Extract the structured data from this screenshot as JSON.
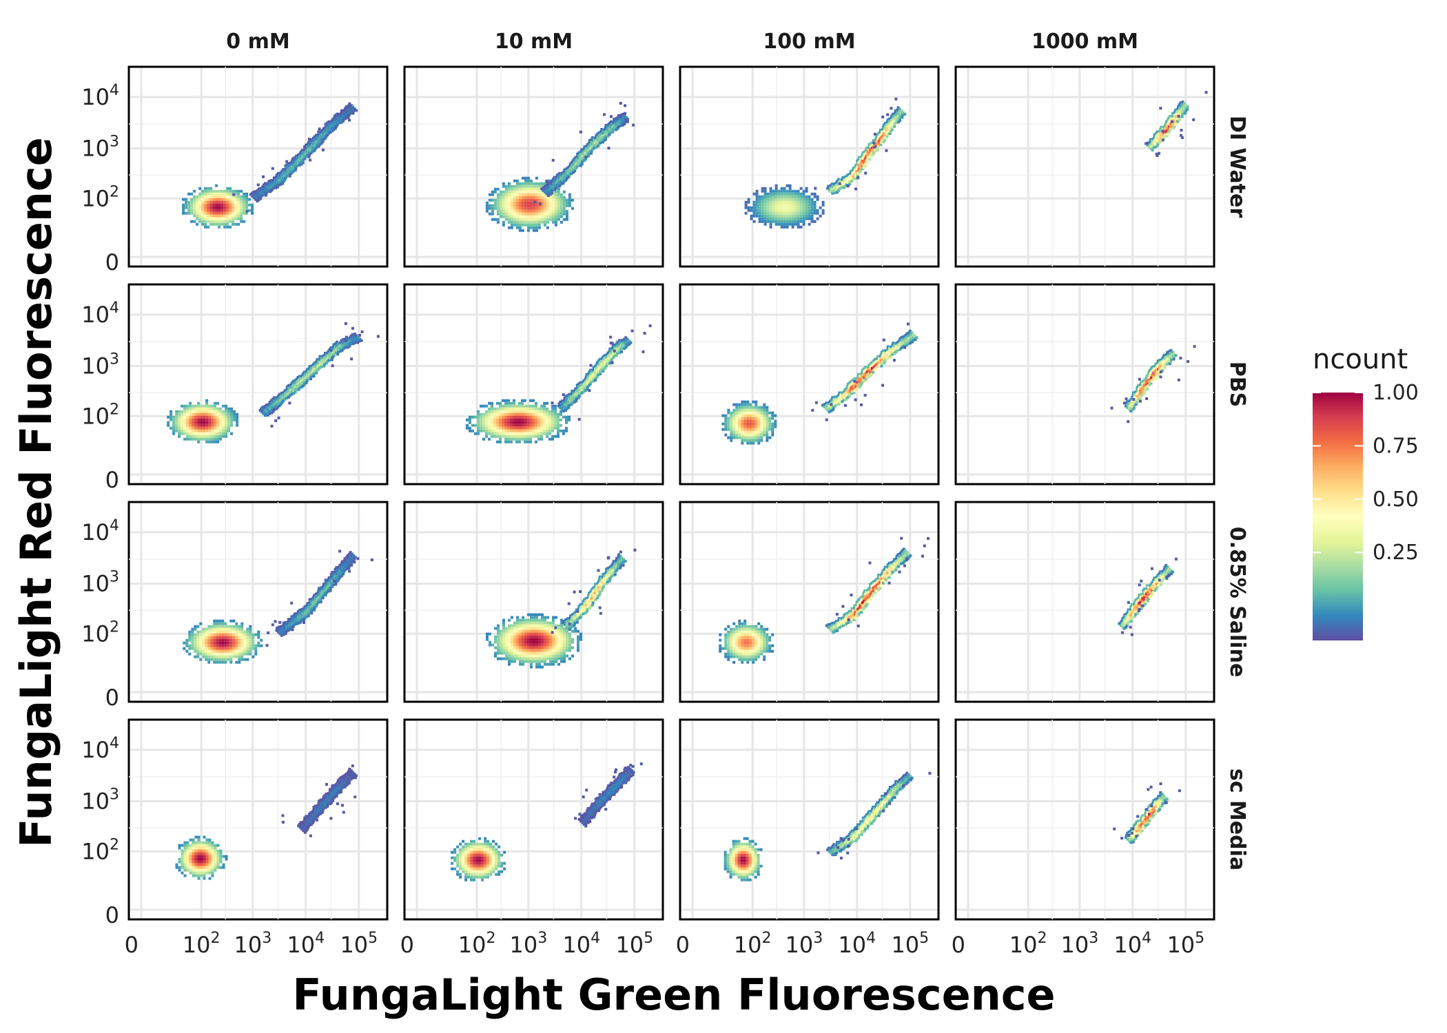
{
  "chart_data": {
    "type": "heatmap",
    "geom": "hexbin-density",
    "x_title": "FungaLight Green Fluorescence",
    "y_title": "FungaLight Red Fluorescence",
    "x_scale": "biexponential",
    "y_scale": "biexponential",
    "x_ticks": [
      {
        "value": 0,
        "base": "0",
        "exp": ""
      },
      {
        "value": 100,
        "base": "10",
        "exp": "2"
      },
      {
        "value": 1000,
        "base": "10",
        "exp": "3"
      },
      {
        "value": 10000,
        "base": "10",
        "exp": "4"
      },
      {
        "value": 100000,
        "base": "10",
        "exp": "5"
      }
    ],
    "y_ticks": [
      {
        "value": 0,
        "base": "0",
        "exp": ""
      },
      {
        "value": 100,
        "base": "10",
        "exp": "2"
      },
      {
        "value": 1000,
        "base": "10",
        "exp": "3"
      },
      {
        "value": 10000,
        "base": "10",
        "exp": "4"
      }
    ],
    "xlim": [
      0,
      200000
    ],
    "ylim": [
      0,
      25000
    ],
    "grid": true,
    "col_facets": [
      "0 mM",
      "10 mM",
      "100 mM",
      "1000 mM"
    ],
    "row_facets": [
      "DI Water",
      "PBS",
      "0.85% Saline",
      "sc Media"
    ],
    "legend": {
      "title": "ncount",
      "position": "right",
      "ticks": [
        {
          "value": 1.0,
          "label": "1.00"
        },
        {
          "value": 0.75,
          "label": "0.75"
        },
        {
          "value": 0.5,
          "label": "0.50"
        },
        {
          "value": 0.25,
          "label": "0.25"
        }
      ],
      "colors": [
        "#5E4FA2",
        "#3288BD",
        "#66C2A5",
        "#ABDDA4",
        "#E6F598",
        "#FFFFBF",
        "#FEE08B",
        "#FDAE61",
        "#F46D43",
        "#D53E4F",
        "#9E0142"
      ]
    },
    "panels": [
      {
        "row": 0,
        "col": 0,
        "pop": {
          "x": 200,
          "y": 70,
          "sx": 0.45,
          "sy": 0.1,
          "w": 1.0
        },
        "trend": [
          [
            1000,
            110
          ],
          [
            3000,
            250
          ],
          [
            10000,
            900
          ],
          [
            30000,
            3000
          ],
          [
            80000,
            7000
          ]
        ],
        "trend_w": 0.22
      },
      {
        "row": 0,
        "col": 1,
        "pop": {
          "x": 1000,
          "y": 80,
          "sx": 0.55,
          "sy": 0.12,
          "w": 0.9
        },
        "trend": [
          [
            2000,
            140
          ],
          [
            6000,
            400
          ],
          [
            15000,
            1200
          ],
          [
            40000,
            3000
          ],
          [
            70000,
            4500
          ]
        ],
        "trend_w": 0.35
      },
      {
        "row": 0,
        "col": 2,
        "pop": {
          "x": 400,
          "y": 70,
          "sx": 0.5,
          "sy": 0.1,
          "w": 0.45
        },
        "trend": [
          [
            3000,
            150
          ],
          [
            8000,
            300
          ],
          [
            15000,
            800
          ],
          [
            25000,
            1500
          ],
          [
            40000,
            3000
          ],
          [
            70000,
            6000
          ]
        ],
        "trend_w": 1.0
      },
      {
        "row": 0,
        "col": 3,
        "pop": null,
        "trend": [
          [
            20000,
            1100
          ],
          [
            35000,
            2000
          ],
          [
            60000,
            4000
          ],
          [
            100000,
            8000
          ]
        ],
        "trend_w": 1.0
      },
      {
        "row": 1,
        "col": 0,
        "pop": {
          "x": 100,
          "y": 80,
          "sx": 0.45,
          "sy": 0.1,
          "w": 1.0
        },
        "trend": [
          [
            1500,
            120
          ],
          [
            5000,
            350
          ],
          [
            15000,
            1000
          ],
          [
            40000,
            2500
          ],
          [
            100000,
            4000
          ]
        ],
        "trend_w": 0.4
      },
      {
        "row": 1,
        "col": 1,
        "pop": {
          "x": 600,
          "y": 80,
          "sx": 0.65,
          "sy": 0.1,
          "w": 1.0
        },
        "trend": [
          [
            4000,
            150
          ],
          [
            10000,
            400
          ],
          [
            25000,
            1200
          ],
          [
            50000,
            2500
          ],
          [
            80000,
            3500
          ]
        ],
        "trend_w": 0.5
      },
      {
        "row": 1,
        "col": 2,
        "pop": {
          "x": 80,
          "y": 75,
          "sx": 0.35,
          "sy": 0.1,
          "w": 0.85
        },
        "trend": [
          [
            2500,
            150
          ],
          [
            6000,
            300
          ],
          [
            15000,
            800
          ],
          [
            40000,
            2000
          ],
          [
            120000,
            4500
          ]
        ],
        "trend_w": 1.0
      },
      {
        "row": 1,
        "col": 3,
        "pop": null,
        "trend": [
          [
            8000,
            150
          ],
          [
            15000,
            400
          ],
          [
            30000,
            1000
          ],
          [
            60000,
            2000
          ]
        ],
        "trend_w": 1.0
      },
      {
        "row": 2,
        "col": 0,
        "pop": {
          "x": 250,
          "y": 70,
          "sx": 0.5,
          "sy": 0.1,
          "w": 1.0
        },
        "trend": [
          [
            3000,
            110
          ],
          [
            10000,
            300
          ],
          [
            30000,
            1200
          ],
          [
            80000,
            4000
          ]
        ],
        "trend_w": 0.25
      },
      {
        "row": 2,
        "col": 1,
        "pop": {
          "x": 1200,
          "y": 75,
          "sx": 0.6,
          "sy": 0.12,
          "w": 1.0
        },
        "trend": [
          [
            5000,
            150
          ],
          [
            12000,
            400
          ],
          [
            25000,
            1200
          ],
          [
            60000,
            3500
          ]
        ],
        "trend_w": 0.75
      },
      {
        "row": 2,
        "col": 2,
        "pop": {
          "x": 70,
          "y": 70,
          "sx": 0.35,
          "sy": 0.1,
          "w": 0.8
        },
        "trend": [
          [
            3000,
            130
          ],
          [
            8000,
            250
          ],
          [
            15000,
            600
          ],
          [
            40000,
            2000
          ],
          [
            90000,
            4500
          ]
        ],
        "trend_w": 1.0
      },
      {
        "row": 2,
        "col": 3,
        "pop": null,
        "trend": [
          [
            6000,
            150
          ],
          [
            12000,
            400
          ],
          [
            25000,
            1000
          ],
          [
            50000,
            2200
          ]
        ],
        "trend_w": 1.0
      },
      {
        "row": 3,
        "col": 0,
        "pop": {
          "x": 90,
          "y": 75,
          "sx": 0.32,
          "sy": 0.1,
          "w": 1.0
        },
        "trend": [
          [
            8000,
            300
          ],
          [
            20000,
            900
          ],
          [
            40000,
            2000
          ],
          [
            80000,
            4000
          ]
        ],
        "trend_w": 0.1
      },
      {
        "row": 3,
        "col": 1,
        "pop": {
          "x": 100,
          "y": 70,
          "sx": 0.35,
          "sy": 0.1,
          "w": 1.0
        },
        "trend": [
          [
            10000,
            400
          ],
          [
            25000,
            1200
          ],
          [
            60000,
            3000
          ],
          [
            90000,
            4500
          ]
        ],
        "trend_w": 0.12
      },
      {
        "row": 3,
        "col": 2,
        "pop": {
          "x": 60,
          "y": 70,
          "sx": 0.25,
          "sy": 0.1,
          "w": 1.0
        },
        "trend": [
          [
            3000,
            100
          ],
          [
            8000,
            200
          ],
          [
            20000,
            600
          ],
          [
            50000,
            1800
          ],
          [
            100000,
            3500
          ]
        ],
        "trend_w": 0.6
      },
      {
        "row": 3,
        "col": 3,
        "pop": null,
        "trend": [
          [
            8000,
            180
          ],
          [
            15000,
            400
          ],
          [
            25000,
            800
          ],
          [
            40000,
            1400
          ]
        ],
        "trend_w": 1.0
      }
    ]
  }
}
